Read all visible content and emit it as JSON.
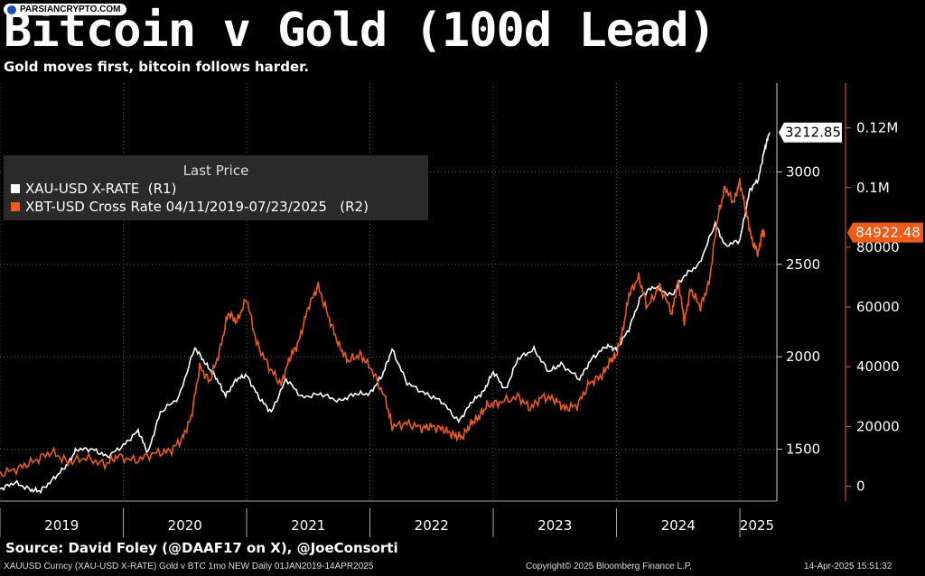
{
  "watermark": "PARSIANCRYPTO.COM",
  "title": "Bitcoin v Gold (100d Lead)",
  "subtitle": "Gold moves first, bitcoin follows harder.",
  "source": "Source: David Foley (@DAAF17 on X), @JoeConsorti",
  "footer": {
    "left": "XAUUSD Curncy (XAU-USD X-RATE) Gold v BTC 1mo NEW  Daily 01JAN2019-14APR2025",
    "center": "Copyright© 2025 Bloomberg Finance L.P.",
    "right": "14-Apr-2025 15:51:32"
  },
  "legend": {
    "title": "Last Price",
    "gold_label": "XAU-USD X-RATE  (R1)",
    "btc_label": "XBT-USD Cross Rate 04/11/2019-07/23/2025   (R2)"
  },
  "colors": {
    "gold": "#ffffff",
    "btc": "#f05a14",
    "background": "#000000",
    "grid": "#555555"
  },
  "chart_data": {
    "type": "line",
    "x_ticks": [
      "2019",
      "2020",
      "2021",
      "2022",
      "2023",
      "2024",
      "2025"
    ],
    "xlim": [
      2019.0,
      2025.3
    ],
    "y_left_ticks": [
      "1500",
      "2000",
      "2500",
      "3000"
    ],
    "y_left_range": [
      1220,
      3480
    ],
    "y_right_ticks": [
      "0",
      "20000",
      "40000",
      "60000",
      "80000",
      "0.1M",
      "0.12M"
    ],
    "y_right_range": [
      -5000,
      135000
    ],
    "last_values": {
      "gold": "3212.85",
      "btc": "84922.48"
    },
    "series": [
      {
        "name": "XAU-USD X-RATE  (R1)",
        "axis": "left",
        "points": [
          [
            2019.0,
            1285
          ],
          [
            2019.12,
            1320
          ],
          [
            2019.25,
            1280
          ],
          [
            2019.33,
            1275
          ],
          [
            2019.45,
            1350
          ],
          [
            2019.55,
            1420
          ],
          [
            2019.62,
            1500
          ],
          [
            2019.75,
            1500
          ],
          [
            2019.87,
            1460
          ],
          [
            2020.0,
            1520
          ],
          [
            2020.12,
            1600
          ],
          [
            2020.2,
            1480
          ],
          [
            2020.3,
            1700
          ],
          [
            2020.45,
            1780
          ],
          [
            2020.58,
            2050
          ],
          [
            2020.67,
            1960
          ],
          [
            2020.75,
            1890
          ],
          [
            2020.83,
            1790
          ],
          [
            2020.92,
            1880
          ],
          [
            2021.0,
            1900
          ],
          [
            2021.1,
            1780
          ],
          [
            2021.2,
            1700
          ],
          [
            2021.32,
            1880
          ],
          [
            2021.45,
            1780
          ],
          [
            2021.6,
            1800
          ],
          [
            2021.75,
            1760
          ],
          [
            2021.88,
            1800
          ],
          [
            2022.0,
            1800
          ],
          [
            2022.1,
            1900
          ],
          [
            2022.18,
            2040
          ],
          [
            2022.3,
            1860
          ],
          [
            2022.45,
            1800
          ],
          [
            2022.58,
            1760
          ],
          [
            2022.72,
            1650
          ],
          [
            2022.83,
            1760
          ],
          [
            2022.92,
            1810
          ],
          [
            2023.0,
            1920
          ],
          [
            2023.1,
            1820
          ],
          [
            2023.2,
            1990
          ],
          [
            2023.33,
            2040
          ],
          [
            2023.45,
            1920
          ],
          [
            2023.55,
            1960
          ],
          [
            2023.7,
            1880
          ],
          [
            2023.8,
            1990
          ],
          [
            2023.92,
            2060
          ],
          [
            2024.0,
            2040
          ],
          [
            2024.1,
            2150
          ],
          [
            2024.2,
            2330
          ],
          [
            2024.3,
            2380
          ],
          [
            2024.45,
            2330
          ],
          [
            2024.55,
            2440
          ],
          [
            2024.67,
            2500
          ],
          [
            2024.8,
            2720
          ],
          [
            2024.88,
            2600
          ],
          [
            2025.0,
            2630
          ],
          [
            2025.08,
            2900
          ],
          [
            2025.15,
            2960
          ],
          [
            2025.2,
            3120
          ],
          [
            2025.24,
            3212.85
          ]
        ]
      },
      {
        "name": "XBT-USD Cross Rate 04/11/2019-07/23/2025   (R2)",
        "axis": "right",
        "points": [
          [
            2019.0,
            4000
          ],
          [
            2019.15,
            6000
          ],
          [
            2019.28,
            8500
          ],
          [
            2019.42,
            11500
          ],
          [
            2019.55,
            8000
          ],
          [
            2019.7,
            9500
          ],
          [
            2019.85,
            7200
          ],
          [
            2019.95,
            10000
          ],
          [
            2020.1,
            8500
          ],
          [
            2020.25,
            11000
          ],
          [
            2020.38,
            11700
          ],
          [
            2020.48,
            16000
          ],
          [
            2020.55,
            23000
          ],
          [
            2020.62,
            40000
          ],
          [
            2020.7,
            35000
          ],
          [
            2020.78,
            45000
          ],
          [
            2020.85,
            58000
          ],
          [
            2020.92,
            55000
          ],
          [
            2021.0,
            63000
          ],
          [
            2021.08,
            48000
          ],
          [
            2021.18,
            40000
          ],
          [
            2021.28,
            34000
          ],
          [
            2021.35,
            43000
          ],
          [
            2021.42,
            48000
          ],
          [
            2021.5,
            60000
          ],
          [
            2021.58,
            67000
          ],
          [
            2021.67,
            56000
          ],
          [
            2021.75,
            47000
          ],
          [
            2021.82,
            42000
          ],
          [
            2021.92,
            44000
          ],
          [
            2022.0,
            40000
          ],
          [
            2022.12,
            30000
          ],
          [
            2022.18,
            20000
          ],
          [
            2022.3,
            21000
          ],
          [
            2022.42,
            19500
          ],
          [
            2022.5,
            20000
          ],
          [
            2022.6,
            19000
          ],
          [
            2022.68,
            17000
          ],
          [
            2022.75,
            16500
          ],
          [
            2022.82,
            21000
          ],
          [
            2022.88,
            23000
          ],
          [
            2022.95,
            27000
          ],
          [
            2023.05,
            28000
          ],
          [
            2023.2,
            30000
          ],
          [
            2023.3,
            26000
          ],
          [
            2023.4,
            30000
          ],
          [
            2023.5,
            29000
          ],
          [
            2023.58,
            26000
          ],
          [
            2023.68,
            27000
          ],
          [
            2023.78,
            34500
          ],
          [
            2023.88,
            37000
          ],
          [
            2023.95,
            42000
          ],
          [
            2024.0,
            44000
          ],
          [
            2024.05,
            52000
          ],
          [
            2024.1,
            64000
          ],
          [
            2024.18,
            70000
          ],
          [
            2024.25,
            60000
          ],
          [
            2024.35,
            67000
          ],
          [
            2024.45,
            58000
          ],
          [
            2024.5,
            69000
          ],
          [
            2024.55,
            55000
          ],
          [
            2024.6,
            66000
          ],
          [
            2024.68,
            60000
          ],
          [
            2024.75,
            68000
          ],
          [
            2024.82,
            90000
          ],
          [
            2024.88,
            100000
          ],
          [
            2024.95,
            95000
          ],
          [
            2025.0,
            102000
          ],
          [
            2025.05,
            92000
          ],
          [
            2025.1,
            82000
          ],
          [
            2025.15,
            78000
          ],
          [
            2025.18,
            85000
          ],
          [
            2025.2,
            84922.48
          ]
        ]
      }
    ]
  }
}
